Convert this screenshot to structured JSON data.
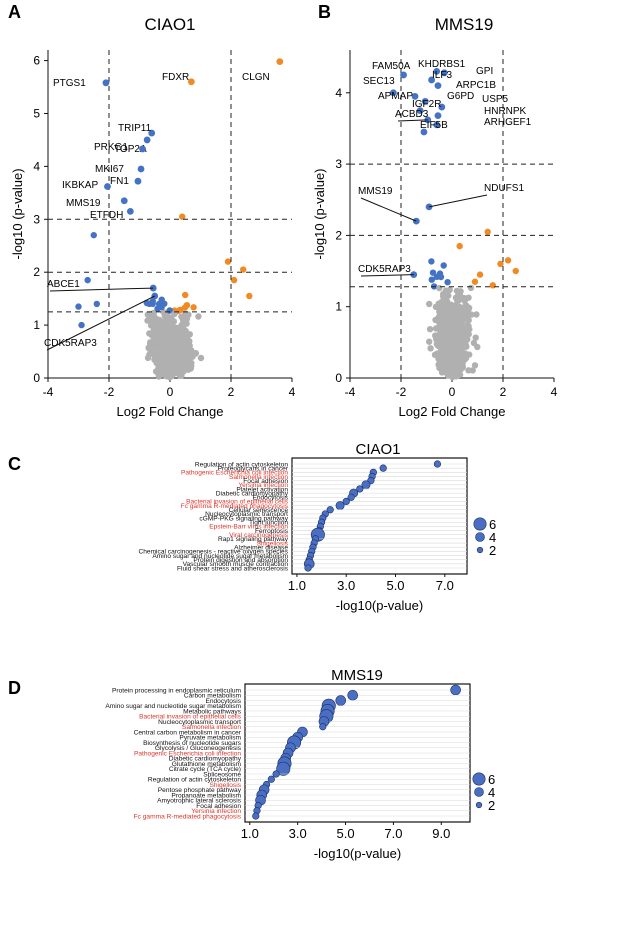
{
  "panels": {
    "A": "A",
    "B": "B",
    "C": "C",
    "D": "D"
  },
  "colors": {
    "up": "#f08a24",
    "down": "#4472c4",
    "ns": "#b0b0b0",
    "red_term": "#e0332b",
    "bubble": "#4a6fc2"
  },
  "chart_data": [
    {
      "id": "A",
      "type": "scatter",
      "title": "CIAO1",
      "xlabel": "Log2 Fold Change",
      "ylabel": "-log10 (p-value)",
      "xlim": [
        -4,
        4
      ],
      "ylim": [
        0,
        6.2
      ],
      "xticks": [
        -4,
        -2,
        0,
        2,
        4
      ],
      "yticks": [
        0,
        1,
        2,
        3,
        4,
        5,
        6
      ],
      "vlines": [
        -2,
        2
      ],
      "hlines": [
        1.25,
        2,
        3
      ],
      "labeled_points": [
        {
          "label": "CLGN",
          "x": 3.6,
          "y": 5.98,
          "color": "up"
        },
        {
          "label": "FDXR",
          "x": 0.7,
          "y": 5.6,
          "color": "up"
        },
        {
          "label": "PTGS1",
          "x": -2.1,
          "y": 5.58,
          "color": "down"
        },
        {
          "label": "TRIP11",
          "x": -0.6,
          "y": 4.63,
          "color": "down"
        },
        {
          "label": "TOP2A",
          "x": -0.75,
          "y": 4.5,
          "color": "down"
        },
        {
          "label": "PRKG1",
          "x": -0.9,
          "y": 4.33,
          "color": "down"
        },
        {
          "label": "MKI67",
          "x": -0.95,
          "y": 3.95,
          "color": "down"
        },
        {
          "label": "FN1",
          "x": -1.05,
          "y": 3.72,
          "color": "down"
        },
        {
          "label": "IKBKAP",
          "x": -2.05,
          "y": 3.62,
          "color": "down"
        },
        {
          "label": "MMS19",
          "x": -1.5,
          "y": 3.35,
          "color": "down"
        },
        {
          "label": "ETFDH",
          "x": -1.3,
          "y": 3.15,
          "color": "down"
        },
        {
          "label": "ABCE1",
          "x": -0.55,
          "y": 1.7,
          "color": "down"
        },
        {
          "label": "CDK5RAP3",
          "x": -0.5,
          "y": 1.55,
          "color": "down"
        }
      ]
    },
    {
      "id": "B",
      "type": "scatter",
      "title": "MMS19",
      "xlabel": "Log2 Fold Change",
      "ylabel": "-log10 (p-value)",
      "xlim": [
        -4,
        4
      ],
      "ylim": [
        0,
        4.6
      ],
      "xticks": [
        -4,
        -2,
        0,
        2,
        4
      ],
      "yticks": [
        0,
        1,
        2,
        3,
        4
      ],
      "vlines": [
        -2,
        2
      ],
      "hlines": [
        1.28,
        2,
        3
      ],
      "labeled_points": [
        {
          "label": "KHDRBS1",
          "x": -0.6,
          "y": 4.3,
          "color": "down"
        },
        {
          "label": "GPI",
          "x": -0.3,
          "y": 4.28,
          "color": "down"
        },
        {
          "label": "FAM50A",
          "x": -1.9,
          "y": 4.25,
          "color": "down"
        },
        {
          "label": "ILF3",
          "x": -0.8,
          "y": 4.18,
          "color": "down"
        },
        {
          "label": "ARPC1B",
          "x": -0.55,
          "y": 4.1,
          "color": "down"
        },
        {
          "label": "SEC13",
          "x": -2.3,
          "y": 4.0,
          "color": "down"
        },
        {
          "label": "APMAP",
          "x": -1.45,
          "y": 3.95,
          "color": "down"
        },
        {
          "label": "G6PD",
          "x": -1.05,
          "y": 3.88,
          "color": "down"
        },
        {
          "label": "USP5",
          "x": -0.4,
          "y": 3.8,
          "color": "down"
        },
        {
          "label": "IGF2R",
          "x": -1.25,
          "y": 3.75,
          "color": "down"
        },
        {
          "label": "HNRNPK",
          "x": -0.55,
          "y": 3.68,
          "color": "down"
        },
        {
          "label": "ACBD3",
          "x": -0.95,
          "y": 3.62,
          "color": "down"
        },
        {
          "label": "ARHGEF1",
          "x": -0.6,
          "y": 3.55,
          "color": "down"
        },
        {
          "label": "EIF5B",
          "x": -1.1,
          "y": 3.45,
          "color": "down"
        },
        {
          "label": "NDUFS1",
          "x": -0.9,
          "y": 2.4,
          "color": "down"
        },
        {
          "label": "MMS19",
          "x": -1.4,
          "y": 2.2,
          "color": "down"
        },
        {
          "label": "CDK5RAP3",
          "x": -1.5,
          "y": 1.45,
          "color": "down"
        }
      ]
    },
    {
      "id": "C",
      "type": "scatter",
      "title": "CIAO1",
      "xlabel": "-log10(p-value)",
      "xlim": [
        0.8,
        7.9
      ],
      "xticks": [
        1.0,
        3.0,
        5.0,
        7.0
      ],
      "xtick_labels": [
        "1.0",
        "3.0",
        "5.0",
        "7.0"
      ],
      "size_legend": [
        "6",
        "4",
        "2"
      ],
      "terms": [
        {
          "label": "Regulation of actin cytoskeleton",
          "x": 6.7,
          "size": 2,
          "red": false
        },
        {
          "label": "Proteoglycans in cancer",
          "x": 4.5,
          "size": 2,
          "red": false
        },
        {
          "label": "Pathogenic Escherichia coli infection",
          "x": 4.1,
          "size": 2,
          "red": true
        },
        {
          "label": "Salmonella infection",
          "x": 4.05,
          "size": 2,
          "red": true
        },
        {
          "label": "Focal adhesion",
          "x": 4.0,
          "size": 2,
          "red": false
        },
        {
          "label": "Yersinia infection",
          "x": 3.8,
          "size": 3,
          "red": true
        },
        {
          "label": "Platelet activation",
          "x": 3.55,
          "size": 2,
          "red": false
        },
        {
          "label": "Diabetic cardiomyopathy",
          "x": 3.3,
          "size": 3,
          "red": false
        },
        {
          "label": "Endocytosis",
          "x": 3.2,
          "size": 2,
          "red": false
        },
        {
          "label": "Bacterial invasion of epithelial cells",
          "x": 3.0,
          "size": 2,
          "red": true
        },
        {
          "label": "Fc gamma R-mediated phagocytosis",
          "x": 2.75,
          "size": 3,
          "red": true
        },
        {
          "label": "Cellular senescence",
          "x": 2.35,
          "size": 2,
          "red": false
        },
        {
          "label": "Nucleocytoplasmic transport",
          "x": 2.15,
          "size": 2,
          "red": false
        },
        {
          "label": "cGMP-PKG signaling pathway",
          "x": 2.05,
          "size": 2,
          "red": false
        },
        {
          "label": "Tight junction",
          "x": 2.0,
          "size": 2,
          "red": false
        },
        {
          "label": "Epstein-Barr virus infection",
          "x": 1.95,
          "size": 2,
          "red": true
        },
        {
          "label": "Ferroptosis",
          "x": 1.9,
          "size": 2,
          "red": false
        },
        {
          "label": "Viral carcinogenesis",
          "x": 1.85,
          "size": 6,
          "red": true
        },
        {
          "label": "Rap1 signaling pathway",
          "x": 1.75,
          "size": 2,
          "red": false
        },
        {
          "label": "Shigellosis",
          "x": 1.7,
          "size": 2,
          "red": true
        },
        {
          "label": "Alzheimer disease",
          "x": 1.65,
          "size": 2,
          "red": false
        },
        {
          "label": "Chemical carcinogenesis - reactive oxygen species",
          "x": 1.6,
          "size": 2,
          "red": false
        },
        {
          "label": "Amino sugar and nucleotide sugar metabolism",
          "x": 1.55,
          "size": 2,
          "red": false
        },
        {
          "label": "Protein digestion and absorption",
          "x": 1.5,
          "size": 2,
          "red": false
        },
        {
          "label": "Vascular smooth muscle contraction",
          "x": 1.5,
          "size": 4,
          "red": false
        },
        {
          "label": "Fluid shear stress and atherosclerosis",
          "x": 1.45,
          "size": 2,
          "red": false
        }
      ]
    },
    {
      "id": "D",
      "type": "scatter",
      "title": "MMS19",
      "xlabel": "-log10(p-value)",
      "xlim": [
        0.8,
        10.2
      ],
      "xticks": [
        1.0,
        3.0,
        5.0,
        7.0,
        9.0
      ],
      "xtick_labels": [
        "1.0",
        "3.0",
        "5.0",
        "7.0",
        "9.0"
      ],
      "size_legend": [
        "6",
        "4",
        "2"
      ],
      "terms": [
        {
          "label": "Protein processing in endoplasmic reticulum",
          "x": 9.6,
          "size": 4,
          "red": false
        },
        {
          "label": "Carbon metabolism",
          "x": 5.3,
          "size": 4,
          "red": false
        },
        {
          "label": "Endocytosis",
          "x": 4.8,
          "size": 4,
          "red": false
        },
        {
          "label": "Amino sugar and nucleotide sugar metabolism",
          "x": 4.3,
          "size": 6,
          "red": false
        },
        {
          "label": "Metabolic pathways",
          "x": 4.25,
          "size": 6,
          "red": false
        },
        {
          "label": "Bacterial invasion of epithelial cells",
          "x": 4.2,
          "size": 6,
          "red": true
        },
        {
          "label": "Nucleocytoplasmic transport",
          "x": 4.1,
          "size": 4,
          "red": false
        },
        {
          "label": "Salmonella infection",
          "x": 4.05,
          "size": 2,
          "red": true
        },
        {
          "label": "Central carbon metabolism in cancer",
          "x": 3.2,
          "size": 4,
          "red": false
        },
        {
          "label": "Pyruvate metabolism",
          "x": 3.0,
          "size": 4,
          "red": false
        },
        {
          "label": "Biosynthesis of nucleotide sugars",
          "x": 2.85,
          "size": 6,
          "red": false
        },
        {
          "label": "Glycolysis / Gluconeogenesis",
          "x": 2.7,
          "size": 4,
          "red": false
        },
        {
          "label": "Pathogenic Escherichia coli infection",
          "x": 2.6,
          "size": 4,
          "red": true
        },
        {
          "label": "Diabetic cardiomyopathy",
          "x": 2.5,
          "size": 4,
          "red": false
        },
        {
          "label": "Glutathione metabolism",
          "x": 2.45,
          "size": 6,
          "red": false
        },
        {
          "label": "Citrate cycle (TCA cycle)",
          "x": 2.4,
          "size": 6,
          "red": false
        },
        {
          "label": "Spliceosome",
          "x": 2.1,
          "size": 2,
          "red": false
        },
        {
          "label": "Regulation of actin cytoskeleton",
          "x": 1.9,
          "size": 2,
          "red": false
        },
        {
          "label": "Shigellosis",
          "x": 1.7,
          "size": 2,
          "red": true
        },
        {
          "label": "Pentose phosphate pathway",
          "x": 1.6,
          "size": 4,
          "red": false
        },
        {
          "label": "Propanoate metabolism",
          "x": 1.5,
          "size": 4,
          "red": false
        },
        {
          "label": "Amyotrophic lateral sclerosis",
          "x": 1.45,
          "size": 4,
          "red": false
        },
        {
          "label": "Focal adhesion",
          "x": 1.35,
          "size": 2,
          "red": false
        },
        {
          "label": "Yersinia infection",
          "x": 1.3,
          "size": 2,
          "red": true
        },
        {
          "label": "Fc gamma R-mediated phagocytosis",
          "x": 1.25,
          "size": 2,
          "red": true
        }
      ]
    }
  ]
}
